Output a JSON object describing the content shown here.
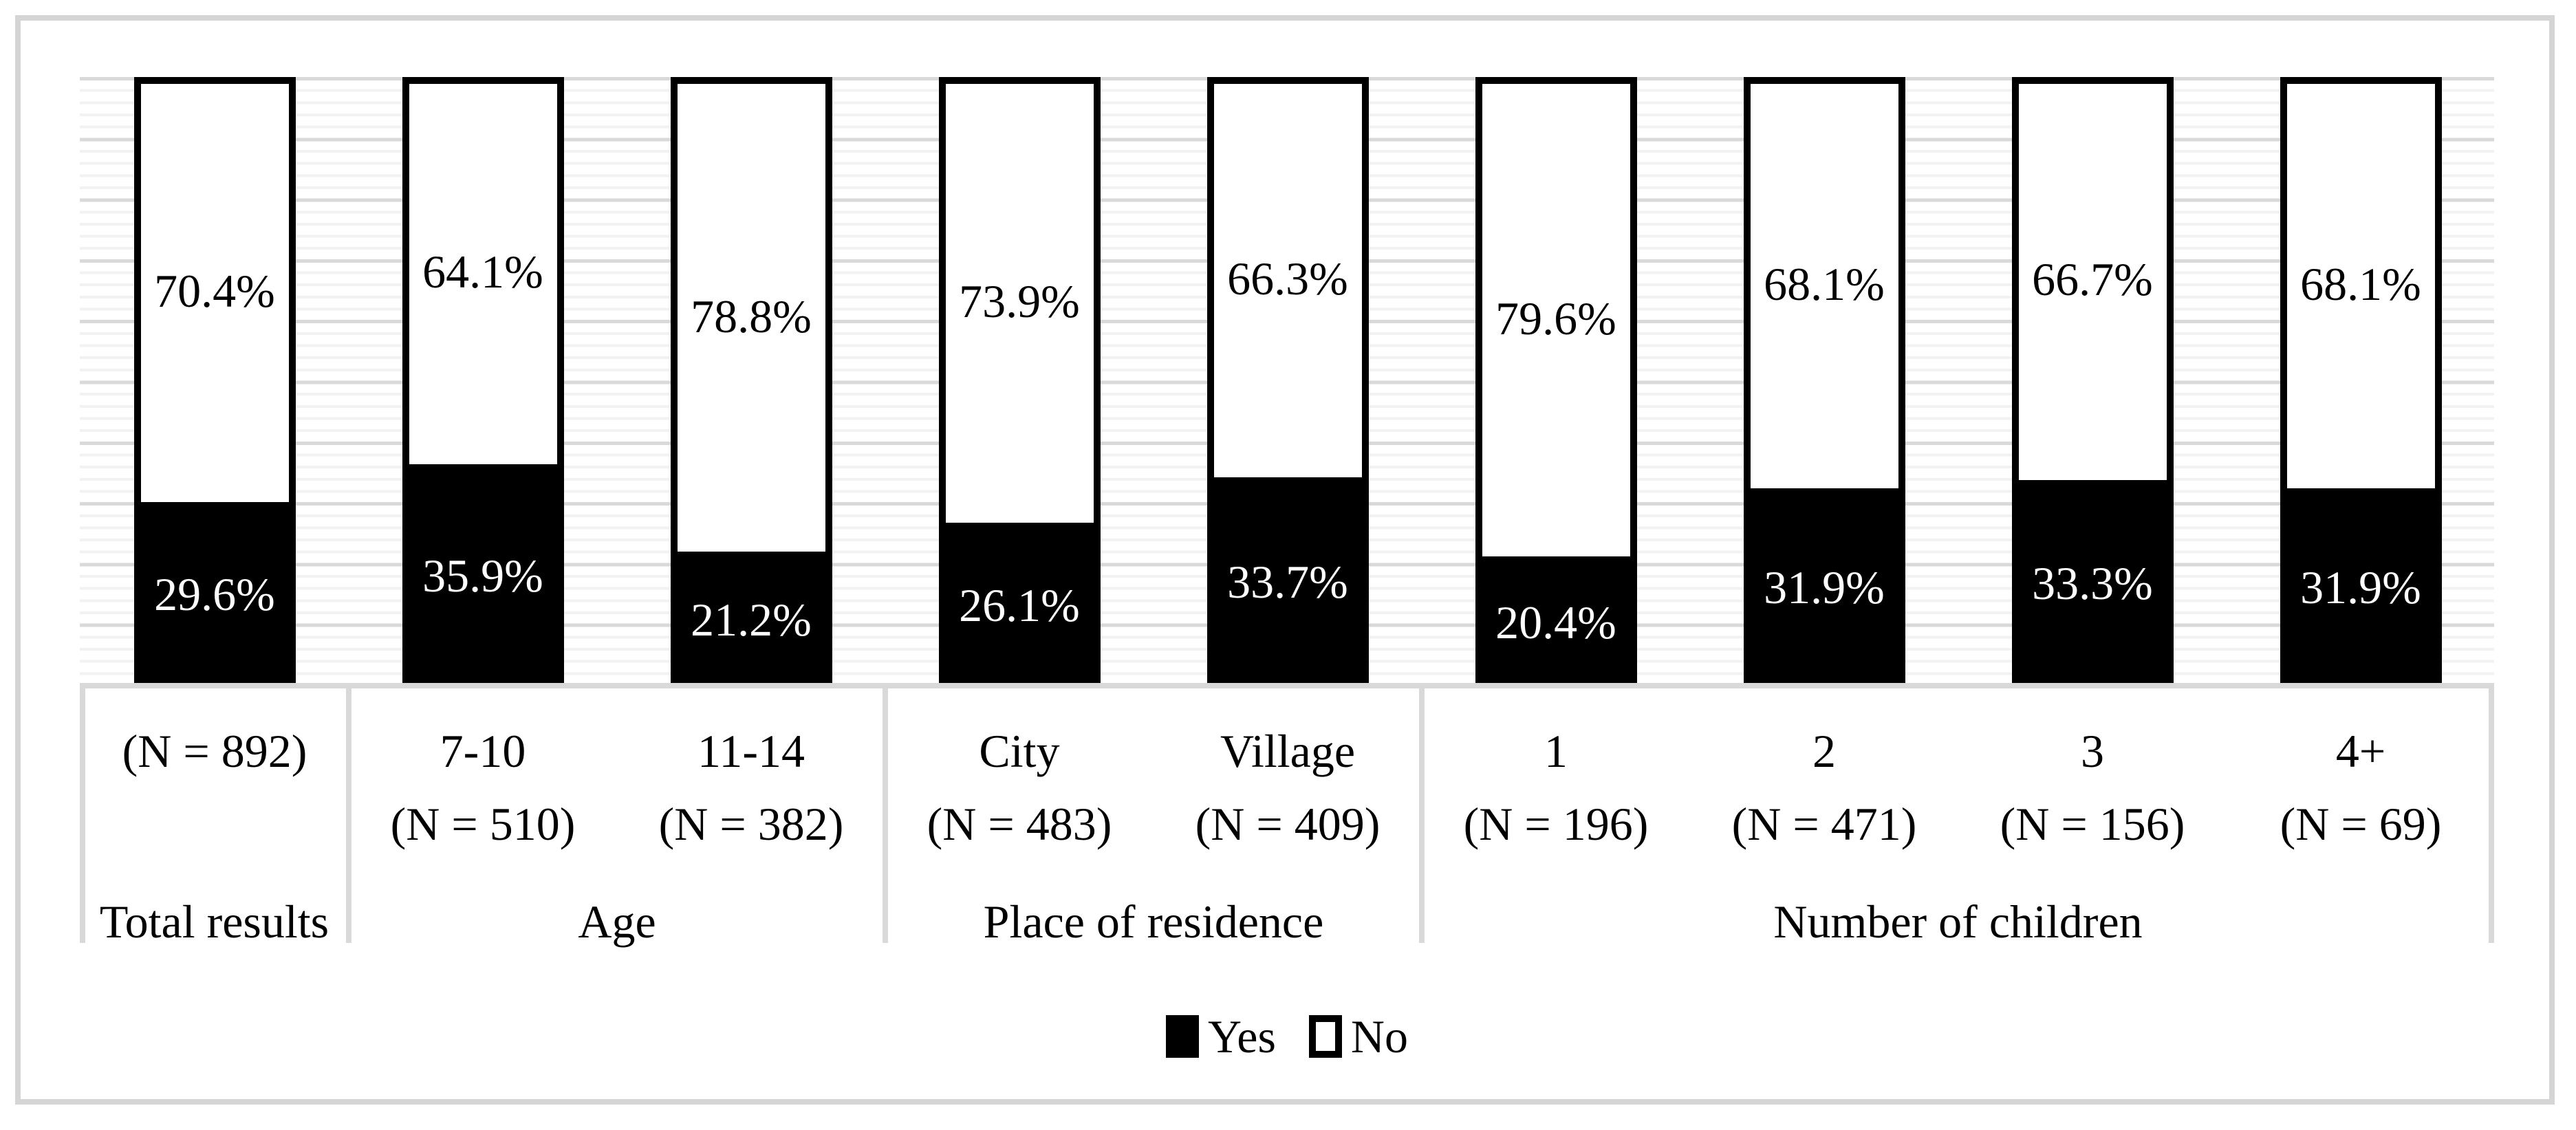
{
  "figure": {
    "kind": "stacked-bar-figure",
    "background": "#ffffff",
    "frame_color": "#d5d5d5",
    "grid_major_color": "#d9d9d9",
    "grid_minor_color": "#f2f2f2"
  },
  "chart_data": {
    "type": "bar",
    "stacked": true,
    "percent": true,
    "orientation": "vertical",
    "ylim": [
      0,
      100
    ],
    "grid": {
      "major_step_percent": 10,
      "minor_step_percent": 2,
      "axis_labels_visible": false
    },
    "legend_position": "bottom-center",
    "legend": [
      {
        "name": "Yes",
        "color": "#000000"
      },
      {
        "name": "No",
        "color": "#ffffff"
      }
    ],
    "groups": [
      {
        "name": "Total results",
        "bars": [
          {
            "top_label": "(N = 892)",
            "bottom_label": "",
            "yes": 29.6,
            "no": 70.4,
            "yes_label": "29.6%",
            "no_label": "70.4%"
          }
        ]
      },
      {
        "name": "Age",
        "bars": [
          {
            "top_label": "7-10",
            "bottom_label": "(N = 510)",
            "yes": 35.9,
            "no": 64.1,
            "yes_label": "35.9%",
            "no_label": "64.1%"
          },
          {
            "top_label": "11-14",
            "bottom_label": "(N = 382)",
            "yes": 21.2,
            "no": 78.8,
            "yes_label": "21.2%",
            "no_label": "78.8%"
          }
        ]
      },
      {
        "name": "Place of residence",
        "bars": [
          {
            "top_label": "City",
            "bottom_label": "(N = 483)",
            "yes": 26.1,
            "no": 73.9,
            "yes_label": "26.1%",
            "no_label": "73.9%"
          },
          {
            "top_label": "Village",
            "bottom_label": "(N = 409)",
            "yes": 33.7,
            "no": 66.3,
            "yes_label": "33.7%",
            "no_label": "66.3%"
          }
        ]
      },
      {
        "name": "Number of children",
        "bars": [
          {
            "top_label": "1",
            "bottom_label": "(N = 196)",
            "yes": 20.4,
            "no": 79.6,
            "yes_label": "20.4%",
            "no_label": "79.6%"
          },
          {
            "top_label": "2",
            "bottom_label": "(N = 471)",
            "yes": 31.9,
            "no": 68.1,
            "yes_label": "31.9%",
            "no_label": "68.1%"
          },
          {
            "top_label": "3",
            "bottom_label": "(N = 156)",
            "yes": 33.3,
            "no": 66.7,
            "yes_label": "33.3%",
            "no_label": "66.7%"
          },
          {
            "top_label": "4+",
            "bottom_label": "(N = 69)",
            "yes": 31.9,
            "no": 68.1,
            "yes_label": "31.9%",
            "no_label": "68.1%"
          }
        ]
      }
    ]
  }
}
